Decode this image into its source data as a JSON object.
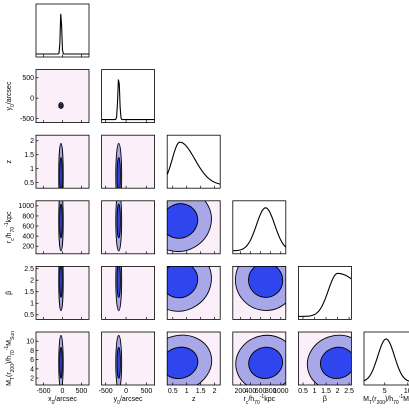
{
  "chart_data": {
    "type": "corner-plot",
    "colors": {
      "panel_bg": "#fbf0f9",
      "contour_outer": "#a8a7e8",
      "contour_inner": "#2f46ee",
      "contour_line": "#000000",
      "marginal_line": "#000000"
    },
    "parameters": [
      {
        "key": "x0",
        "tick_values": [
          -500,
          0,
          500
        ],
        "tick_labels": [
          "-500",
          "0",
          "500"
        ],
        "axis_label": "x$_0$/arcsec",
        "label_parts": [
          [
            "x",
            ""
          ],
          [
            "0",
            "sub"
          ],
          [
            "/arcsec",
            ""
          ]
        ],
        "range": [
          -700,
          700
        ],
        "mean": -40,
        "sd": 18
      },
      {
        "key": "y0",
        "tick_values": [
          -500,
          0,
          500
        ],
        "tick_labels": [
          "-500",
          "0",
          "500"
        ],
        "axis_label": "y$_0$/arcsec",
        "label_parts": [
          [
            "y",
            ""
          ],
          [
            "0",
            "sub"
          ],
          [
            "/arcsec",
            ""
          ]
        ],
        "range": [
          -600,
          700
        ],
        "mean": -180,
        "sd": 22
      },
      {
        "key": "z",
        "tick_values": [
          0.5,
          1,
          1.5,
          2
        ],
        "tick_labels": [
          "0.5",
          "1",
          "1.5",
          "2"
        ],
        "axis_label": "z",
        "label_parts": [
          [
            "z",
            ""
          ]
        ],
        "range": [
          0.3,
          2.2
        ],
        "mean": 0.75,
        "sd": 0.35
      },
      {
        "key": "rc",
        "tick_values": [
          200,
          400,
          600,
          800,
          1000
        ],
        "tick_labels": [
          "200",
          "400",
          "600",
          "800",
          "1000"
        ],
        "axis_label": "r$_c$/h$_{70}^{-1}$kpc",
        "label_parts": [
          [
            "r",
            ""
          ],
          [
            "c",
            "sub"
          ],
          [
            "/h",
            ""
          ],
          [
            "70",
            "sub"
          ],
          [
            "-1",
            "sup"
          ],
          [
            "kpc",
            ""
          ]
        ],
        "range": [
          50,
          1100
        ],
        "mean": 700,
        "sd": 180
      },
      {
        "key": "beta",
        "tick_values": [
          0.5,
          1,
          1.5,
          2,
          2.5
        ],
        "tick_labels": [
          "0.5",
          "1",
          "1.5",
          "2",
          "2.5"
        ],
        "axis_label": "β",
        "label_parts": [
          [
            "β",
            ""
          ]
        ],
        "range": [
          0.3,
          2.6
        ],
        "mean": 2.0,
        "sd": 0.4
      },
      {
        "key": "MT",
        "tick_values": [
          5,
          10
        ],
        "tick_labels": [
          "5",
          "10"
        ],
        "y_tick_values": [
          2,
          4,
          6,
          8,
          10
        ],
        "y_tick_labels": [
          "2",
          "4",
          "6",
          "8",
          "10"
        ],
        "axis_label": "M$_T$(r$_{200}$)/h$_{70}^{-1}$M$_{Sun}$",
        "label_parts": [
          [
            "M",
            ""
          ],
          [
            "T",
            "sub"
          ],
          [
            "(r",
            ""
          ],
          [
            "200",
            "sub"
          ],
          [
            ")/h",
            ""
          ],
          [
            "70",
            "sub"
          ],
          [
            "-1",
            "sup"
          ],
          [
            "M",
            ""
          ],
          [
            "Sun",
            "sub"
          ]
        ],
        "range": [
          0.5,
          12
        ],
        "mean": 5.3,
        "sd": 1.8
      }
    ],
    "y_axis_parameters": [
      "y0",
      "z",
      "rc",
      "beta",
      "MT"
    ],
    "x_axis_parameters": [
      "x0",
      "y0",
      "z",
      "rc",
      "beta",
      "MT"
    ]
  }
}
